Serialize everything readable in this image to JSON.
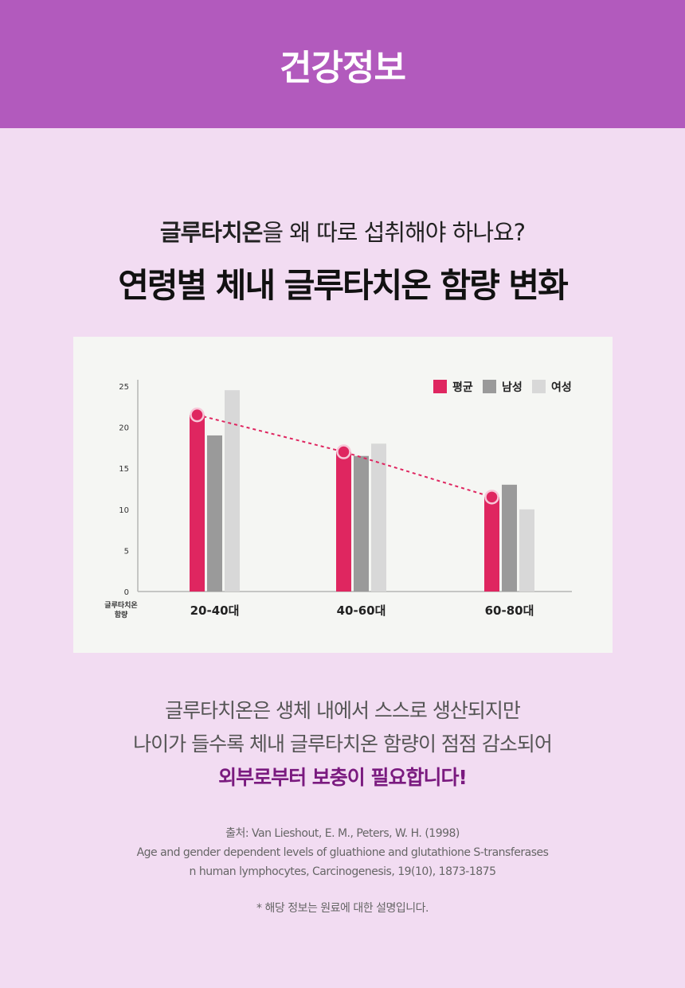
{
  "header": {
    "title": "건강정보"
  },
  "question": {
    "bold": "글루타치온",
    "rest": "을 왜 따로 섭취해야 하나요?"
  },
  "headline": "연령별 체내 글루타치온 함량 변화",
  "chart_data": {
    "type": "bar",
    "categories": [
      "20-40대",
      "40-60대",
      "60-80대"
    ],
    "series": [
      {
        "name": "평균",
        "color": "#df2660",
        "values": [
          21.5,
          17,
          11.5
        ]
      },
      {
        "name": "남성",
        "color": "#9a9a9a",
        "values": [
          19,
          16.5,
          13
        ]
      },
      {
        "name": "여성",
        "color": "#d8d8d8",
        "values": [
          24.5,
          18,
          10
        ]
      }
    ],
    "trend_series": "평균",
    "yticks": [
      0,
      5,
      10,
      15,
      20,
      25
    ],
    "ylim": [
      0,
      25
    ],
    "ylabel": [
      "글루타치온",
      "함량"
    ],
    "xlabel": "",
    "legend_position": "top-right",
    "grid": false
  },
  "description": {
    "line1": "글루타치온은 생체 내에서 스스로 생산되지만",
    "line2": "나이가 들수록 체내 글루타치온 함량이 점점 감소되어",
    "line3": "외부로부터 보충이 필요합니다!"
  },
  "source": {
    "line1": "출처: Van Lieshout, E. M., Peters, W. H. (1998)",
    "line2": "Age and gender dependent levels of gluathione and glutathione S-transferases",
    "line3": "n human lymphocytes, Carcinogenesis, 19(10), 1873-1875"
  },
  "note": "* 해당 정보는 원료에 대한 설명입니다."
}
